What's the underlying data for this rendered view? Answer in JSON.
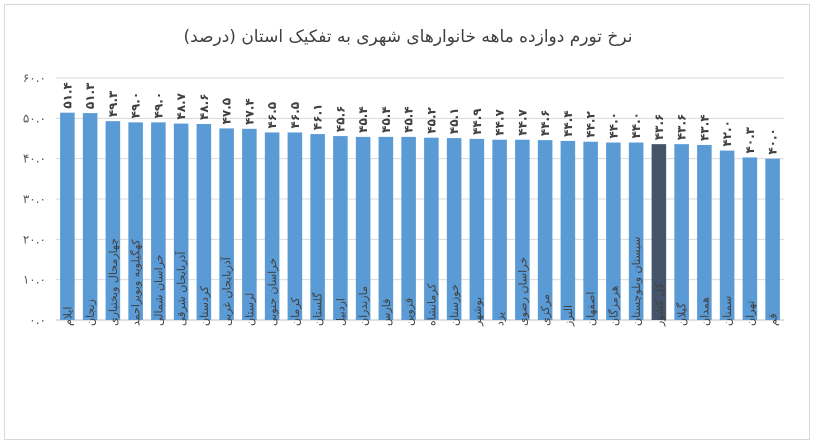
{
  "chart_data": {
    "type": "bar",
    "title": "نرخ تورم دوازده ماهه خانوارهای شهری به تفکیک استان (درصد)",
    "xlabel": "",
    "ylabel": "",
    "ylim": [
      0,
      60
    ],
    "yticks": [
      0,
      10,
      20,
      30,
      40,
      50,
      60
    ],
    "ytick_labels": [
      "۰.۰",
      "۱۰.۰",
      "۲۰.۰",
      "۳۰.۰",
      "۴۰.۰",
      "۵۰.۰",
      "۶۰.۰"
    ],
    "grid": true,
    "legend": "none",
    "bar_color": "#5b9bd5",
    "highlight_color": "#44546a",
    "highlight_category": "کل کشور",
    "categories": [
      "ایلام",
      "زنجان",
      "چهارمحال وبختیاری",
      "کهگیلویه وبویراحمد",
      "خراسان شمالی",
      "آذربایجان شرقی",
      "کردستان",
      "آذربایجان غربی",
      "لرستان",
      "خراسان جنوبی",
      "کرمان",
      "گلستان",
      "اردبیل",
      "مازندران",
      "فارس",
      "قزوین",
      "کرمانشاه",
      "خوزستان",
      "بوشهر",
      "یزد",
      "خراسان رضوی",
      "مرکزی",
      "البرز",
      "اصفهان",
      "هرمزگان",
      "سیستان وبلوچستان",
      "کل کشور",
      "گیلان",
      "همدان",
      "سمنان",
      "تهران",
      "قم"
    ],
    "values": [
      51.4,
      51.3,
      49.3,
      49.0,
      49.0,
      48.7,
      48.6,
      47.5,
      47.4,
      46.5,
      46.5,
      46.1,
      45.6,
      45.4,
      45.4,
      45.4,
      45.2,
      45.1,
      44.9,
      44.7,
      44.7,
      44.6,
      44.4,
      44.2,
      44.0,
      44.0,
      43.6,
      43.6,
      43.4,
      42.0,
      40.3,
      40.0
    ],
    "value_labels": [
      "۵۱.۴",
      "۵۱.۳",
      "۴۹.۳",
      "۴۹.۰",
      "۴۹.۰",
      "۴۸.۷",
      "۴۸.۶",
      "۴۷.۵",
      "۴۷.۴",
      "۴۶.۵",
      "۴۶.۵",
      "۴۶.۱",
      "۴۵.۶",
      "۴۵.۴",
      "۴۵.۴",
      "۴۵.۴",
      "۴۵.۲",
      "۴۵.۱",
      "۴۴.۹",
      "۴۴.۷",
      "۴۴.۷",
      "۴۴.۶",
      "۴۴.۴",
      "۴۴.۲",
      "۴۴.۰",
      "۴۴.۰",
      "۴۳.۶",
      "۴۳.۶",
      "۴۳.۴",
      "۴۲.۰",
      "۴۰.۳",
      "۴۰.۰"
    ]
  }
}
